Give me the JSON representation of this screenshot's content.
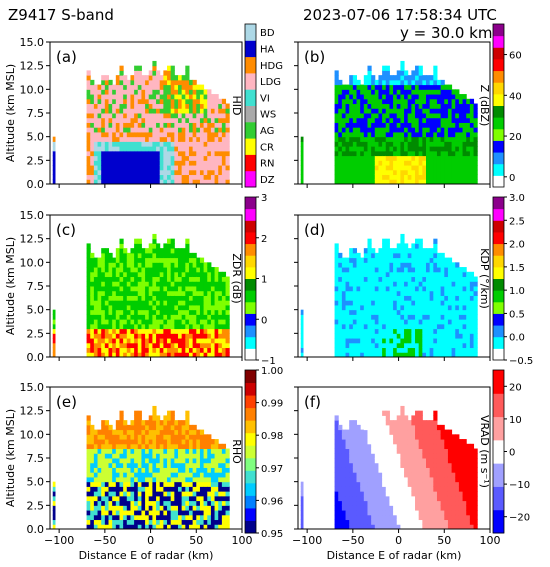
{
  "header": {
    "left_title": "Z9417 S-band",
    "right_title": "2023-07-06 17:58:34 UTC",
    "cross_section": "y = 30.0 km"
  },
  "axes": {
    "ylabel": "Altitude (km MSL)",
    "xlabel": "Distance E of radar (km)",
    "xlim": [
      -110,
      100
    ],
    "ylim": [
      0,
      15
    ],
    "xticks": [
      "-100",
      "-50",
      "0",
      "50",
      "100"
    ],
    "yticks": [
      "0.0",
      "2.5",
      "5.0",
      "7.5",
      "10.0",
      "12.5",
      "15.0"
    ]
  },
  "chart_data": [
    {
      "panel_label": "(a)",
      "type": "heatmap",
      "field": "HID",
      "colorbar_label": "HID",
      "colorbar_type": "categorical",
      "categories": [
        "BD",
        "HA",
        "HDG",
        "LDG",
        "VI",
        "WS",
        "AG",
        "CR",
        "RN",
        "DZ"
      ],
      "colors": [
        "#ff00ff",
        "#ff0000",
        "#ffff00",
        "#32cd32",
        "#a9a9a9",
        "#40e0d0",
        "#ffb6c1",
        "#ff8c00",
        "#0000cd",
        "#add8e6"
      ]
    },
    {
      "panel_label": "(b)",
      "type": "heatmap",
      "field": "Z",
      "colorbar_label": "Z (dBZ)",
      "colorbar_type": "continuous",
      "colorbar_ticks": [
        "0",
        "20",
        "40",
        "60"
      ],
      "colorbar_range": [
        -5,
        75
      ],
      "colors": [
        "#ffffff",
        "#00ffff",
        "#1e90ff",
        "#0000ff",
        "#7fff00",
        "#00cd00",
        "#008b00",
        "#ffff00",
        "#ffd700",
        "#ff8c00",
        "#ff0000",
        "#cd0000",
        "#ff00ff",
        "#8b008b"
      ]
    },
    {
      "panel_label": "(c)",
      "type": "heatmap",
      "field": "ZDR",
      "colorbar_label": "ZDR (dB)",
      "colorbar_type": "continuous",
      "colorbar_ticks": [
        "−1",
        "0",
        "1",
        "2",
        "3"
      ],
      "colorbar_range": [
        -1,
        3
      ],
      "colors": [
        "#ffffff",
        "#00ffff",
        "#1e90ff",
        "#0000ff",
        "#7fff00",
        "#00cd00",
        "#008b00",
        "#ffff00",
        "#ffd700",
        "#ff8c00",
        "#ff0000",
        "#cd0000",
        "#ff00ff",
        "#8b008b"
      ]
    },
    {
      "panel_label": "(d)",
      "type": "heatmap",
      "field": "KDP",
      "colorbar_label": "KDP (°/km)",
      "colorbar_type": "continuous",
      "colorbar_ticks": [
        "−0.5",
        "0.0",
        "0.5",
        "1.0",
        "1.5",
        "2.0",
        "2.5",
        "3.0"
      ],
      "colorbar_range": [
        -0.5,
        3.0
      ],
      "colors": [
        "#ffffff",
        "#00ffff",
        "#1e90ff",
        "#0000ff",
        "#7fff00",
        "#00cd00",
        "#008b00",
        "#ffff00",
        "#ffd700",
        "#ff8c00",
        "#ff0000",
        "#cd0000",
        "#ff00ff",
        "#8b008b"
      ]
    },
    {
      "panel_label": "(e)",
      "type": "heatmap",
      "field": "RHO",
      "colorbar_label": "RHO",
      "colorbar_type": "continuous",
      "colorbar_ticks": [
        "0.95",
        "0.96",
        "0.97",
        "0.98",
        "0.99",
        "1.00"
      ],
      "colorbar_range": [
        0.95,
        1.0
      ],
      "colors": [
        "#00008b",
        "#0000ff",
        "#0080ff",
        "#00ccff",
        "#40e0d0",
        "#80ff80",
        "#ccff33",
        "#ffff00",
        "#ffc000",
        "#ff8000",
        "#ff4000",
        "#cc0000",
        "#800000"
      ]
    },
    {
      "panel_label": "(f)",
      "type": "heatmap",
      "field": "VRAD",
      "colorbar_label": "VRAD (m s⁻¹)",
      "colorbar_type": "continuous",
      "colorbar_ticks": [
        "−20",
        "−10",
        "0",
        "10",
        "20"
      ],
      "colorbar_range": [
        -25,
        25
      ],
      "colors": [
        "#0000ff",
        "#5a5aff",
        "#a0a0ff",
        "#ffffff",
        "#ffa0a0",
        "#ff5a5a",
        "#ff0000"
      ]
    }
  ]
}
